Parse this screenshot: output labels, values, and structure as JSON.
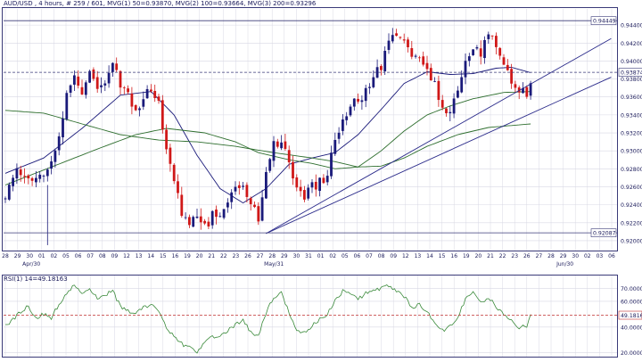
{
  "header": {
    "title": "AUD/USD , 4 hours, # 259 / 601, MVG(1) 50=0.93870, MVG(2) 100=0.93664, MVG(3) 200=0.93296"
  },
  "colors": {
    "background": "#ffffff",
    "frame": "#3a3a78",
    "grid": "#d8d8e4",
    "bull_candle": "#1a1a7a",
    "bear_candle": "#d01818",
    "mvg_blue": "#1a1a7a",
    "mvg_green": "#2e6e2e",
    "rsi_line": "#3a8a3a",
    "dashed_line": "#3a3a78",
    "rsi_dashed": "#c03030",
    "trendline": "#2a2a8a"
  },
  "chart_data": [
    {
      "type": "line",
      "title": "AUD/USD , 4 hours, # 259 / 601, MVG(1) 50=0.93870, MVG(2) 100=0.93664, MVG(3) 200=0.93296",
      "subtype": "candlestick",
      "ylim": [
        0.9189,
        0.9458
      ],
      "y_ticks": [
        0.92,
        0.922,
        0.924,
        0.926,
        0.928,
        0.93,
        0.932,
        0.934,
        0.936,
        0.938,
        0.94,
        0.942,
        0.944
      ],
      "y_tick_labels": [
        "0.92000",
        "0.92200",
        "0.92400",
        "0.92600",
        "0.92800",
        "0.93000",
        "0.93200",
        "0.93400",
        "0.93600",
        "0.93800",
        "0.94000",
        "0.94200",
        "0.94400"
      ],
      "x_ticks": [
        "28",
        "29",
        "30",
        "01",
        "02",
        "05",
        "06",
        "07",
        "08",
        "09",
        "12",
        "13",
        "14",
        "15",
        "16",
        "19",
        "20",
        "21",
        "22",
        "23",
        "26",
        "27",
        "28",
        "29",
        "30",
        "31",
        "01",
        "02",
        "05",
        "06",
        "07",
        "08",
        "09",
        "12",
        "13",
        "14",
        "15",
        "16",
        "19",
        "20",
        "21",
        "22",
        "23",
        "26",
        "27",
        "28",
        "29",
        "30",
        "02",
        "03",
        "06"
      ],
      "month_labels": [
        "Apr/30",
        "May/31",
        "Jun/30"
      ],
      "markers": {
        "high_label": "0.94449",
        "high_value": 0.94449,
        "current_label": "0.93874",
        "current_value": 0.93874,
        "low_label": "0.92087",
        "low_value": 0.92087
      },
      "price_anchors": [
        [
          0,
          0.9245
        ],
        [
          1,
          0.9262
        ],
        [
          3,
          0.9285
        ],
        [
          5,
          0.9268
        ],
        [
          8,
          0.927
        ],
        [
          10,
          0.9275
        ],
        [
          12,
          0.929
        ],
        [
          14,
          0.9318
        ],
        [
          16,
          0.9362
        ],
        [
          18,
          0.9385
        ],
        [
          20,
          0.9368
        ],
        [
          22,
          0.9385
        ],
        [
          24,
          0.937
        ],
        [
          26,
          0.938
        ],
        [
          28,
          0.9395
        ],
        [
          30,
          0.9375
        ],
        [
          32,
          0.936
        ],
        [
          34,
          0.934
        ],
        [
          36,
          0.9362
        ],
        [
          38,
          0.9368
        ],
        [
          40,
          0.9355
        ],
        [
          42,
          0.93
        ],
        [
          44,
          0.9265
        ],
        [
          46,
          0.923
        ],
        [
          48,
          0.9222
        ],
        [
          50,
          0.9225
        ],
        [
          52,
          0.9215
        ],
        [
          54,
          0.9228
        ],
        [
          56,
          0.9232
        ],
        [
          58,
          0.9245
        ],
        [
          60,
          0.9262
        ],
        [
          62,
          0.9265
        ],
        [
          64,
          0.924
        ],
        [
          66,
          0.9225
        ],
        [
          68,
          0.9275
        ],
        [
          70,
          0.9305
        ],
        [
          72,
          0.9315
        ],
        [
          74,
          0.929
        ],
        [
          76,
          0.9255
        ],
        [
          78,
          0.925
        ],
        [
          80,
          0.926
        ],
        [
          82,
          0.9265
        ],
        [
          84,
          0.9275
        ],
        [
          86,
          0.931
        ],
        [
          88,
          0.9335
        ],
        [
          90,
          0.9352
        ],
        [
          92,
          0.9355
        ],
        [
          94,
          0.9368
        ],
        [
          96,
          0.938
        ],
        [
          98,
          0.9395
        ],
        [
          100,
          0.942
        ],
        [
          102,
          0.9432
        ],
        [
          104,
          0.9422
        ],
        [
          106,
          0.9402
        ],
        [
          108,
          0.9405
        ],
        [
          110,
          0.9392
        ],
        [
          112,
          0.9375
        ],
        [
          114,
          0.9345
        ],
        [
          116,
          0.9348
        ],
        [
          118,
          0.9362
        ],
        [
          120,
          0.9402
        ],
        [
          122,
          0.9418
        ],
        [
          124,
          0.9405
        ],
        [
          126,
          0.9432
        ],
        [
          128,
          0.9418
        ],
        [
          130,
          0.9395
        ],
        [
          132,
          0.9378
        ],
        [
          134,
          0.9368
        ],
        [
          136,
          0.9362
        ],
        [
          137,
          0.9376
        ]
      ],
      "series": [
        {
          "name": "MVG(1) 50",
          "values": [
            [
              0,
              0.9275
            ],
            [
              10,
              0.9292
            ],
            [
              20,
              0.9325
            ],
            [
              30,
              0.9362
            ],
            [
              38,
              0.9366
            ],
            [
              44,
              0.934
            ],
            [
              50,
              0.9295
            ],
            [
              56,
              0.9258
            ],
            [
              62,
              0.9242
            ],
            [
              68,
              0.9258
            ],
            [
              74,
              0.9285
            ],
            [
              80,
              0.9292
            ],
            [
              86,
              0.9298
            ],
            [
              92,
              0.9318
            ],
            [
              98,
              0.9346
            ],
            [
              104,
              0.9375
            ],
            [
              110,
              0.9388
            ],
            [
              116,
              0.9385
            ],
            [
              122,
              0.9386
            ],
            [
              128,
              0.9392
            ],
            [
              132,
              0.9393
            ],
            [
              137,
              0.9387
            ]
          ]
        },
        {
          "name": "MVG(2) 100",
          "values": [
            [
              0,
              0.9262
            ],
            [
              12,
              0.9282
            ],
            [
              24,
              0.9302
            ],
            [
              34,
              0.9318
            ],
            [
              42,
              0.9325
            ],
            [
              52,
              0.932
            ],
            [
              60,
              0.931
            ],
            [
              66,
              0.9298
            ],
            [
              74,
              0.929
            ],
            [
              80,
              0.9286
            ],
            [
              86,
              0.928
            ],
            [
              92,
              0.9282
            ],
            [
              98,
              0.93
            ],
            [
              104,
              0.9322
            ],
            [
              110,
              0.934
            ],
            [
              116,
              0.935
            ],
            [
              122,
              0.9358
            ],
            [
              130,
              0.9365
            ],
            [
              137,
              0.9366
            ]
          ]
        },
        {
          "name": "MVG(3) 200",
          "values": [
            [
              0,
              0.9345
            ],
            [
              10,
              0.9342
            ],
            [
              20,
              0.933
            ],
            [
              30,
              0.9318
            ],
            [
              40,
              0.9312
            ],
            [
              50,
              0.931
            ],
            [
              60,
              0.9305
            ],
            [
              70,
              0.9298
            ],
            [
              80,
              0.9292
            ],
            [
              86,
              0.9288
            ],
            [
              92,
              0.9282
            ],
            [
              98,
              0.9283
            ],
            [
              104,
              0.9292
            ],
            [
              110,
              0.9305
            ],
            [
              118,
              0.9318
            ],
            [
              126,
              0.9326
            ],
            [
              137,
              0.933
            ]
          ]
        }
      ],
      "trendlines": [
        {
          "name": "upper-trendline",
          "points": [
            [
              68,
              0.9208
            ],
            [
              158,
              0.9425
            ]
          ]
        },
        {
          "name": "lower-trendline",
          "points": [
            [
              68,
              0.9208
            ],
            [
              158,
              0.9382
            ]
          ]
        }
      ]
    },
    {
      "type": "line",
      "title": "RSI(1) 14=49.18163",
      "ylim": [
        17,
        80
      ],
      "y_ticks": [
        20,
        40,
        60,
        70
      ],
      "y_tick_labels": [
        "20.000000",
        "40.000000",
        "60.000000",
        "70.000000"
      ],
      "current_label": "49.18163",
      "current_value": 49.18163,
      "series": [
        {
          "name": "RSI(1) 14",
          "values": [
            [
              0,
              41
            ],
            [
              2,
              46
            ],
            [
              4,
              52
            ],
            [
              6,
              56
            ],
            [
              8,
              47
            ],
            [
              10,
              50
            ],
            [
              12,
              47
            ],
            [
              14,
              58
            ],
            [
              16,
              66
            ],
            [
              18,
              73
            ],
            [
              20,
              67
            ],
            [
              22,
              70
            ],
            [
              24,
              62
            ],
            [
              26,
              65
            ],
            [
              28,
              68
            ],
            [
              30,
              56
            ],
            [
              32,
              53
            ],
            [
              34,
              50
            ],
            [
              36,
              56
            ],
            [
              38,
              57
            ],
            [
              40,
              52
            ],
            [
              42,
              40
            ],
            [
              44,
              33
            ],
            [
              46,
              27
            ],
            [
              48,
              24
            ],
            [
              50,
              21
            ],
            [
              52,
              28
            ],
            [
              54,
              32
            ],
            [
              56,
              34
            ],
            [
              58,
              37
            ],
            [
              60,
              42
            ],
            [
              62,
              45
            ],
            [
              64,
              36
            ],
            [
              66,
              33
            ],
            [
              68,
              51
            ],
            [
              70,
              63
            ],
            [
              72,
              66
            ],
            [
              74,
              52
            ],
            [
              76,
              37
            ],
            [
              78,
              35
            ],
            [
              80,
              41
            ],
            [
              82,
              46
            ],
            [
              84,
              50
            ],
            [
              86,
              60
            ],
            [
              88,
              68
            ],
            [
              90,
              66
            ],
            [
              92,
              62
            ],
            [
              94,
              66
            ],
            [
              96,
              68
            ],
            [
              98,
              70
            ],
            [
              100,
              72
            ],
            [
              102,
              68
            ],
            [
              104,
              64
            ],
            [
              106,
              55
            ],
            [
              108,
              57
            ],
            [
              110,
              52
            ],
            [
              112,
              44
            ],
            [
              114,
              37
            ],
            [
              116,
              41
            ],
            [
              118,
              47
            ],
            [
              120,
              62
            ],
            [
              122,
              67
            ],
            [
              124,
              58
            ],
            [
              126,
              63
            ],
            [
              128,
              56
            ],
            [
              130,
              50
            ],
            [
              132,
              45
            ],
            [
              134,
              40
            ],
            [
              136,
              41
            ],
            [
              137,
              49
            ]
          ]
        }
      ]
    }
  ]
}
